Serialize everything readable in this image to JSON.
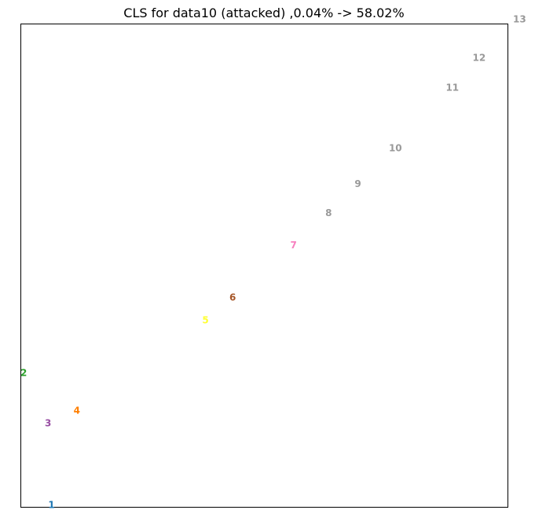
{
  "chart_data": {
    "type": "scatter",
    "title": "CLS for data10 (attacked) ,0.04% -> 58.02%",
    "xlabel": "",
    "ylabel": "",
    "xlim": [
      0,
      100
    ],
    "ylim": [
      0,
      100
    ],
    "grid": false,
    "legend": "none",
    "points": [
      {
        "label": "1",
        "x": 6.3,
        "y": 0.5,
        "color": "#1f77b4"
      },
      {
        "label": "2",
        "x": 0.6,
        "y": 27.8,
        "color": "#2ca02c"
      },
      {
        "label": "3",
        "x": 5.6,
        "y": 17.4,
        "color": "#984ea3"
      },
      {
        "label": "4",
        "x": 11.5,
        "y": 20.0,
        "color": "#ff7f00"
      },
      {
        "label": "5",
        "x": 37.9,
        "y": 38.7,
        "color": "#ffff33"
      },
      {
        "label": "6",
        "x": 43.5,
        "y": 43.4,
        "color": "#a65628"
      },
      {
        "label": "7",
        "x": 56.0,
        "y": 54.2,
        "color": "#f781bf"
      },
      {
        "label": "8",
        "x": 63.2,
        "y": 60.9,
        "color": "#999999"
      },
      {
        "label": "9",
        "x": 69.2,
        "y": 66.9,
        "color": "#999999"
      },
      {
        "label": "10",
        "x": 76.9,
        "y": 74.3,
        "color": "#999999"
      },
      {
        "label": "11",
        "x": 88.6,
        "y": 86.8,
        "color": "#999999"
      },
      {
        "label": "12",
        "x": 94.1,
        "y": 93.0,
        "color": "#999999"
      },
      {
        "label": "13",
        "x": 102.4,
        "y": 101.0,
        "color": "#999999"
      }
    ]
  }
}
